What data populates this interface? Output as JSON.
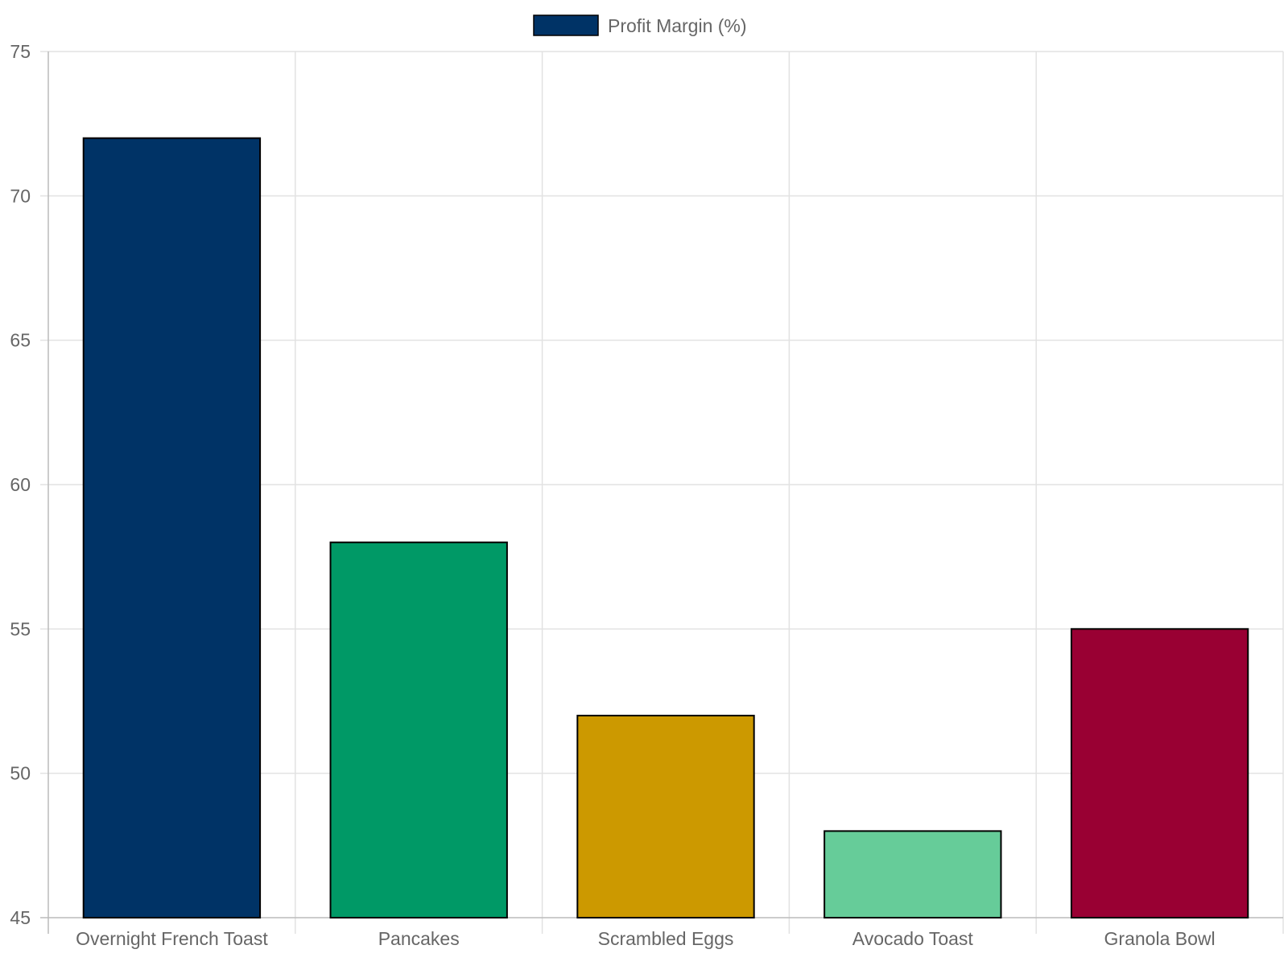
{
  "chart_data": {
    "type": "bar",
    "categories": [
      "Overnight French Toast",
      "Pancakes",
      "Scrambled Eggs",
      "Avocado Toast",
      "Granola Bowl"
    ],
    "series": [
      {
        "name": "Profit Margin (%)",
        "values": [
          72,
          58,
          52,
          48,
          55
        ]
      }
    ],
    "bar_colors": [
      "#003366",
      "#009966",
      "#CC9900",
      "#66CC99",
      "#990033"
    ],
    "legend_color": "#003366",
    "ylim": [
      45,
      75
    ],
    "yticks": [
      45,
      50,
      55,
      60,
      65,
      70,
      75
    ],
    "grid": true,
    "legend_position": "top-center",
    "title": "",
    "xlabel": "",
    "ylabel": ""
  }
}
